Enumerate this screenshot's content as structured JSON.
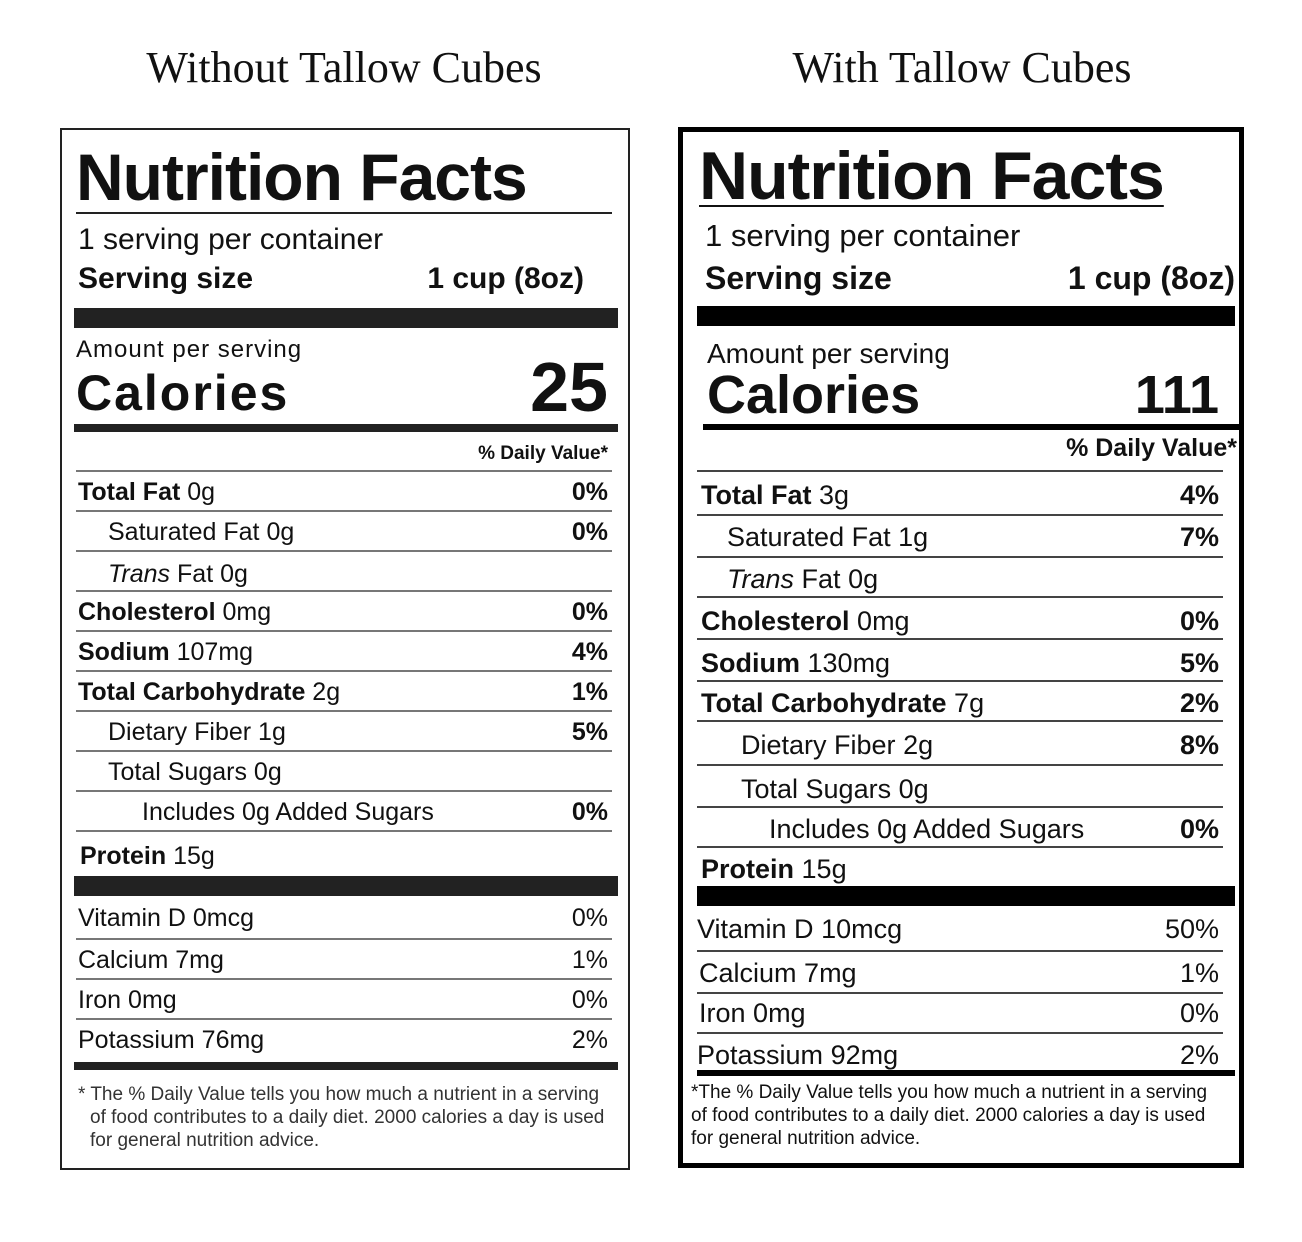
{
  "headings": {
    "left": "Without Tallow Cubes",
    "right": "With Tallow Cubes"
  },
  "left_label": {
    "title": "Nutrition Facts",
    "servings_per_container": "1 serving per container",
    "serving_size_label": "Serving size",
    "serving_size_value": "1 cup (8oz)",
    "amount_per_serving": "Amount per serving",
    "calories_label": "Calories",
    "calories_value": "25",
    "daily_value_header": "% Daily Value*",
    "nutrients": [
      {
        "name": "Total Fat",
        "amount": "0g",
        "dv": "0%"
      },
      {
        "name": "Saturated Fat",
        "amount": "0g",
        "dv": "0%"
      },
      {
        "name_italic": "Trans",
        "name": "Fat",
        "amount": "0g",
        "dv": ""
      },
      {
        "name": "Cholesterol",
        "amount": "0mg",
        "dv": "0%"
      },
      {
        "name": "Sodium",
        "amount": "107mg",
        "dv": "4%"
      },
      {
        "name": "Total Carbohydrate",
        "amount": "2g",
        "dv": "1%"
      },
      {
        "name": "Dietary Fiber",
        "amount": "1g",
        "dv": "5%"
      },
      {
        "name": "Total Sugars",
        "amount": "0g",
        "dv": ""
      },
      {
        "name": "Includes 0g Added Sugars",
        "amount": "",
        "dv": "0%"
      },
      {
        "name": "Protein",
        "amount": "15g",
        "dv": ""
      }
    ],
    "vitamins": [
      {
        "name": "Vitamin D",
        "amount": "0mcg",
        "dv": "0%"
      },
      {
        "name": "Calcium",
        "amount": "7mg",
        "dv": "1%"
      },
      {
        "name": "Iron",
        "amount": "0mg",
        "dv": "0%"
      },
      {
        "name": "Potassium",
        "amount": "76mg",
        "dv": "2%"
      }
    ],
    "footnote": "* The % Daily Value tells you how much a nutrient in a serving of food contributes to a daily diet. 2000 calories a day is used for general nutrition advice."
  },
  "right_label": {
    "title": "Nutrition Facts",
    "servings_per_container": "1 serving per container",
    "serving_size_label": "Serving size",
    "serving_size_value": "1 cup (8oz)",
    "amount_per_serving": "Amount per serving",
    "calories_label": "Calories",
    "calories_value": "111",
    "daily_value_header": "% Daily Value*",
    "nutrients": [
      {
        "name": "Total Fat",
        "amount": "3g",
        "dv": "4%"
      },
      {
        "name": "Saturated Fat",
        "amount": "1g",
        "dv": "7%"
      },
      {
        "name_italic": "Trans",
        "name": "Fat",
        "amount": "0g",
        "dv": ""
      },
      {
        "name": "Cholesterol",
        "amount": "0mg",
        "dv": "0%"
      },
      {
        "name": "Sodium",
        "amount": "130mg",
        "dv": "5%"
      },
      {
        "name": "Total Carbohydrate",
        "amount": "7g",
        "dv": "2%"
      },
      {
        "name": "Dietary Fiber",
        "amount": "2g",
        "dv": "8%"
      },
      {
        "name": "Total Sugars",
        "amount": "0g",
        "dv": ""
      },
      {
        "name": "Includes 0g Added Sugars",
        "amount": "",
        "dv": "0%"
      },
      {
        "name": "Protein",
        "amount": "15g",
        "dv": ""
      }
    ],
    "vitamins": [
      {
        "name": "Vitamin D",
        "amount": "10mcg",
        "dv": "50%"
      },
      {
        "name": "Calcium",
        "amount": "7mg",
        "dv": "1%"
      },
      {
        "name": "Iron",
        "amount": "0mg",
        "dv": "0%"
      },
      {
        "name": "Potassium",
        "amount": "92mg",
        "dv": "2%"
      }
    ],
    "footnote": "*The % Daily Value tells you how much a nutrient in a serving of food contributes to a daily diet. 2000 calories a day is used for general nutrition advice."
  }
}
